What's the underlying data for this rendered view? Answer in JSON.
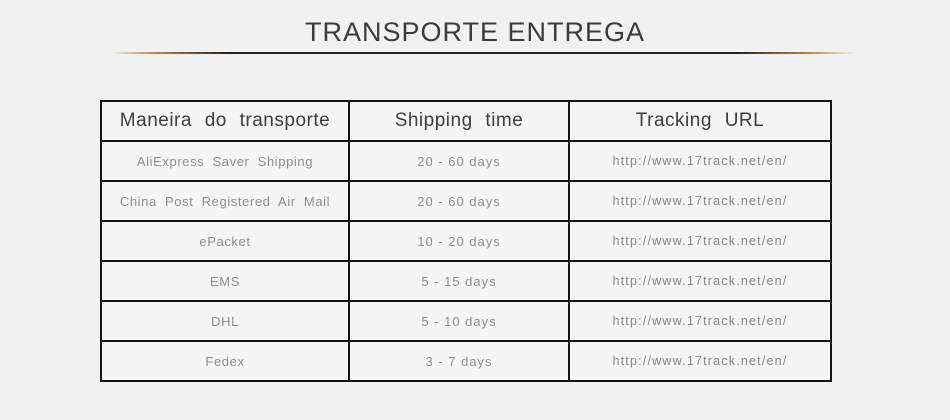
{
  "title": "TRANSPORTE ENTREGA",
  "accents": {
    "underline_gold": "#b9894e",
    "underline_dark": "#23201d",
    "background": "#f0f1f0",
    "border": "#141414"
  },
  "table": {
    "headers": {
      "method": "Maneira do transporte",
      "time": "Shipping time",
      "url": "Tracking URL"
    },
    "rows": [
      {
        "method": "AliExpress Saver Shipping",
        "time": "20 - 60 days",
        "url": "http://www.17track.net/en/"
      },
      {
        "method": "China Post Registered Air Mail",
        "time": "20 - 60 days",
        "url": "http://www.17track.net/en/"
      },
      {
        "method": "ePacket",
        "time": "10 - 20 days",
        "url": "http://www.17track.net/en/"
      },
      {
        "method": "EMS",
        "time": "5 - 15 days",
        "url": "http://www.17track.net/en/"
      },
      {
        "method": "DHL",
        "time": "5 - 10 days",
        "url": "http://www.17track.net/en/"
      },
      {
        "method": "Fedex",
        "time": "3 - 7 days",
        "url": "http://www.17track.net/en/"
      }
    ]
  }
}
